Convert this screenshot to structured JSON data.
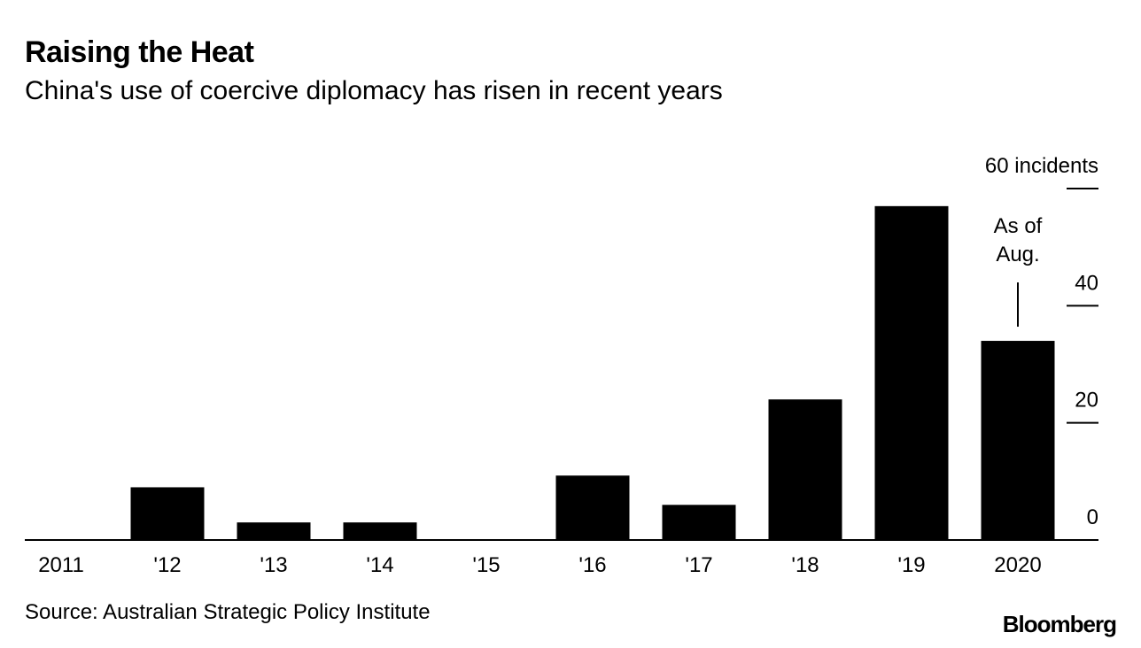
{
  "header": {
    "title": "Raising the Heat",
    "subtitle": "China's use of coercive diplomacy has risen in recent years"
  },
  "footer": {
    "source": "Source: Australian Strategic Policy Institute",
    "brand": "Bloomberg"
  },
  "colors": {
    "bar": "#000000",
    "text": "#000000",
    "background": "#ffffff"
  },
  "chart_data": {
    "type": "bar",
    "title": "Raising the Heat",
    "subtitle": "China's use of coercive diplomacy has risen in recent years",
    "categories": [
      "2011",
      "'12",
      "'13",
      "'14",
      "'15",
      "'16",
      "'17",
      "'18",
      "'19",
      "2020"
    ],
    "values": [
      0,
      9,
      3,
      3,
      0,
      11,
      6,
      24,
      57,
      34
    ],
    "ylim": [
      0,
      60
    ],
    "yticks": [
      0,
      20,
      40,
      60
    ],
    "ytick_labels": [
      "0",
      "20",
      "40",
      "60 incidents"
    ],
    "yaxis_position": "right",
    "xlabel": "",
    "ylabel": "",
    "grid": false,
    "annotation": {
      "category": "2020",
      "lines": [
        "As of",
        "Aug."
      ]
    }
  }
}
